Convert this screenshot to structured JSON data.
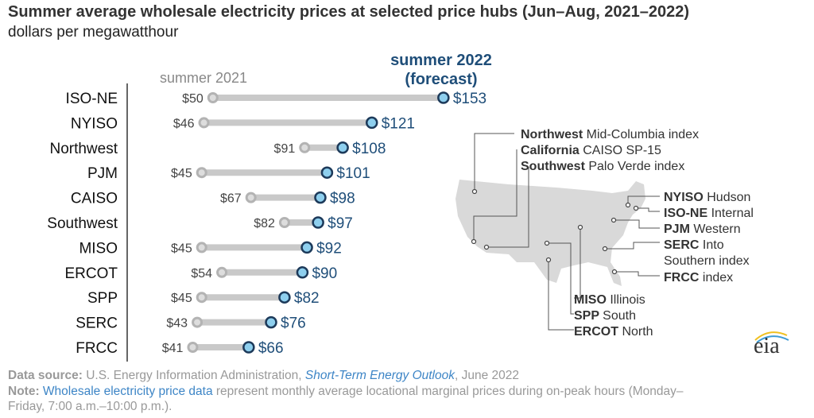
{
  "chart_data": {
    "type": "dumbbell",
    "title": "Summer average wholesale electricity prices at selected price hubs (Jun–Aug, 2021–2022)",
    "ylabel": "dollars per megawatthour",
    "series_labels": {
      "s2021": "summer 2021",
      "s2022_line1": "summer 2022",
      "s2022_line2": "(forecast)"
    },
    "categories": [
      "ISO-NE",
      "NYISO",
      "Northwest",
      "PJM",
      "CAISO",
      "Southwest",
      "MISO",
      "ERCOT",
      "SPP",
      "SERC",
      "FRCC"
    ],
    "series": [
      {
        "name": "summer 2021",
        "values": [
          50,
          46,
          91,
          45,
          67,
          82,
          45,
          54,
          45,
          43,
          41
        ],
        "labels": [
          "$50",
          "$46",
          "$91",
          "$45",
          "$67",
          "$82",
          "$45",
          "$54",
          "$45",
          "$43",
          "$41"
        ]
      },
      {
        "name": "summer 2022 (forecast)",
        "values": [
          153,
          121,
          108,
          101,
          98,
          97,
          92,
          90,
          82,
          76,
          66
        ],
        "labels": [
          "$153",
          "$121",
          "$108",
          "$101",
          "$98",
          "$97",
          "$92",
          "$90",
          "$82",
          "$76",
          "$66"
        ]
      }
    ],
    "colors": {
      "s2021": "#b3b3b3",
      "s2022_fill": "#8ecfee",
      "s2022_stroke": "#1d3a5a",
      "bar": "#c9c9c9",
      "label2022": "#1f4e79"
    }
  },
  "map_labels": [
    {
      "bold": "Northwest",
      "rest": "Mid-Columbia index"
    },
    {
      "bold": "California",
      "rest": "CAISO SP-15"
    },
    {
      "bold": "Southwest",
      "rest": "Palo Verde index"
    },
    {
      "bold": "NYISO",
      "rest": "Hudson"
    },
    {
      "bold": "ISO-NE",
      "rest": "Internal"
    },
    {
      "bold": "PJM",
      "rest": "Western"
    },
    {
      "bold": "SERC",
      "rest": "Into"
    },
    {
      "bold": "",
      "rest": "Southern index"
    },
    {
      "bold": "FRCC",
      "rest": "index"
    },
    {
      "bold": "MISO",
      "rest": "Illinois"
    },
    {
      "bold": "SPP",
      "rest": "South"
    },
    {
      "bold": "ERCOT",
      "rest": "North"
    }
  ],
  "footer": {
    "source_label": "Data source:",
    "source_text": "U.S. Energy Information Administration,",
    "source_link": "Short-Term Energy Outlook",
    "source_date": ", June 2022",
    "note_label": "Note:",
    "note_link": "Wholesale electricity price data",
    "note_text": "represent monthly average locational marginal prices during on-peak hours (Monday–",
    "note_text2": "Friday, 7:00 a.m.–10:00 p.m.)."
  },
  "logo": "eia"
}
